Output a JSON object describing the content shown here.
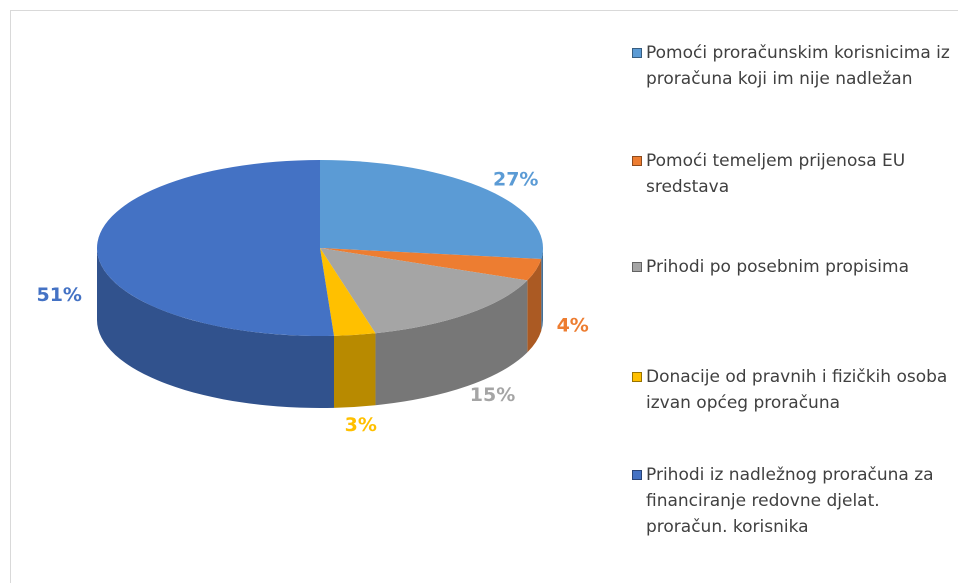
{
  "chart_data": {
    "type": "pie",
    "series": [
      {
        "name": "Pomoći proračunskim korisnicima iz proračuna koji im nije nadležan",
        "color": "#5b9bd5",
        "value": 27,
        "value_label": "27%"
      },
      {
        "name": "Pomoći temeljem prijenosa EU sredstava",
        "color": "#ed7d31",
        "value": 4,
        "value_label": "4%"
      },
      {
        "name": "Prihodi po posebnim propisima",
        "color": "#a5a5a5",
        "value": 15,
        "value_label": "15%"
      },
      {
        "name": "Donacije od pravnih i fizičkih osoba izvan općeg proračuna",
        "color": "#ffc000",
        "value": 3,
        "value_label": "3%"
      },
      {
        "name": "Prihodi iz nadležnog proračuna za financiranje redovne djelat. proračun. korisnika",
        "color": "#4472c4",
        "value": 51,
        "value_label": "51%"
      }
    ]
  }
}
